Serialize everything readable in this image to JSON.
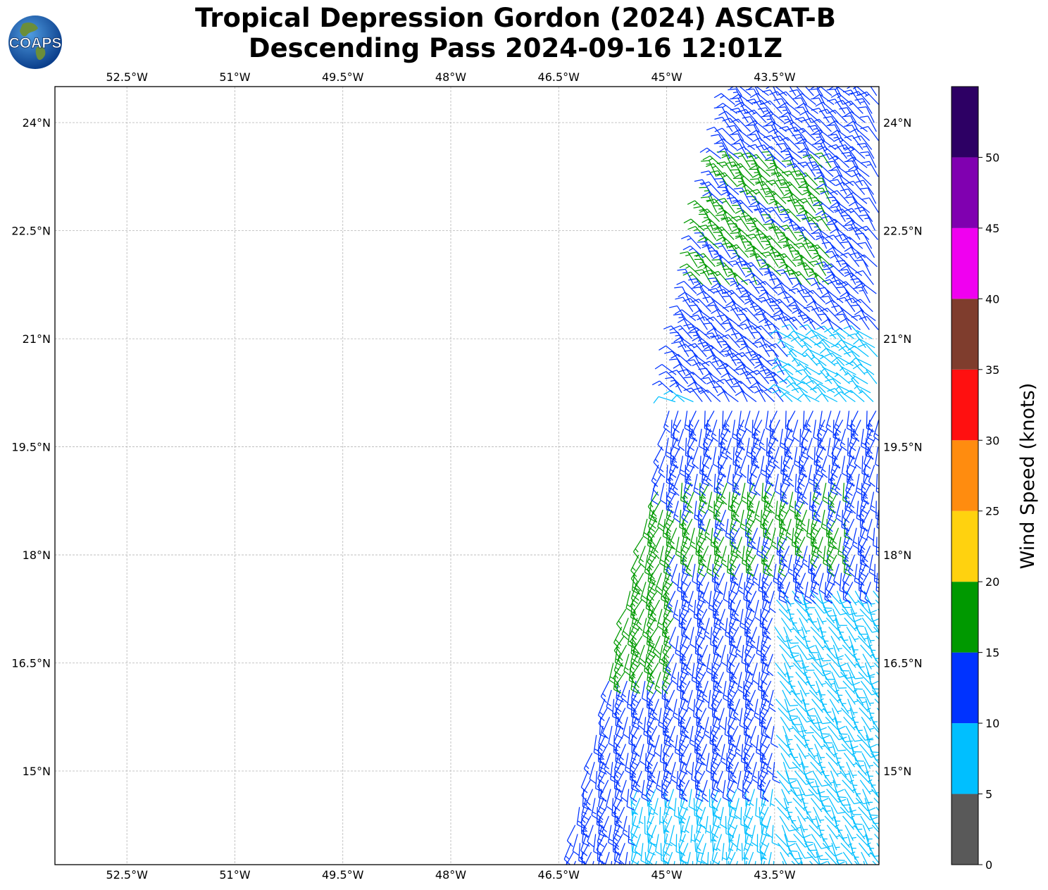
{
  "title": {
    "line1": "Tropical Depression Gordon (2024) ASCAT-B",
    "line2": "Descending Pass 2024-09-16 12:01Z"
  },
  "logo": {
    "text": "COAPS"
  },
  "colors": {
    "bin_0_5": "#595959",
    "bin_5_10": "#00bfff",
    "bin_10_15": "#0033ff",
    "bin_15_20": "#009900",
    "bin_20_25": "#ffd20f",
    "bin_25_30": "#ff8c0f",
    "bin_30_35": "#ff1010",
    "bin_35_40": "#7f3d2d",
    "bin_40_45": "#f000f0",
    "bin_45_50": "#8000b0",
    "bin_50_plus": "#2d0064"
  },
  "chart_data": {
    "type": "map",
    "extent": {
      "lon": [
        -53.5,
        -42.05
      ],
      "lat": [
        13.7,
        24.5
      ]
    },
    "lon_ticks": [
      "52.5°W",
      "51°W",
      "49.5°W",
      "48°W",
      "46.5°W",
      "45°W",
      "43.5°W"
    ],
    "lat_ticks": [
      "24°N",
      "22.5°N",
      "21°N",
      "19.5°N",
      "18°N",
      "16.5°N",
      "15°N"
    ],
    "grid": true,
    "colorbar": {
      "label": "Wind Speed (knots)",
      "ticks": [
        "0",
        "5",
        "10",
        "15",
        "20",
        "25",
        "30",
        "35",
        "40",
        "45",
        "50"
      ],
      "bins": [
        0,
        5,
        10,
        15,
        20,
        25,
        30,
        35,
        40,
        45,
        50,
        55
      ]
    },
    "swath": {
      "west_edge": [
        [
          -46.4,
          13.7
        ],
        [
          -45.2,
          18.8
        ],
        [
          -44.4,
          22.9
        ],
        [
          -44.0,
          24.45
        ]
      ],
      "east_edge": [
        [
          -42.05,
          13.7
        ],
        [
          -42.05,
          24.5
        ]
      ]
    },
    "wind_regions": [
      {
        "name": "northern NW winds",
        "lat_range": [
          20.2,
          24.5
        ],
        "speed_kt": 12,
        "dir_deg": 320
      },
      {
        "name": "northern band",
        "lat_range": [
          21.7,
          23.4
        ],
        "lon_range": [
          -44.6,
          -42.7
        ],
        "speed_kt": 16,
        "dir_deg": 325
      },
      {
        "name": "NE cyan patch",
        "lat_range": [
          19.7,
          21.0
        ],
        "lon_range": [
          -43.3,
          -42.05
        ],
        "speed_kt": 8,
        "dir_deg": 310
      },
      {
        "name": "western cyan",
        "lat_range": [
          19.5,
          20.2
        ],
        "lon_range": [
          -45.4,
          -44.6
        ],
        "speed_kt": 8,
        "dir_deg": 300
      },
      {
        "name": "central south winds",
        "lat_range": [
          13.7,
          20.0
        ],
        "speed_kt": 13,
        "dir_deg": 195
      },
      {
        "name": "western green band",
        "lat_range": [
          16.3,
          18.9
        ],
        "lon_range": [
          -46.2,
          -44.9
        ],
        "speed_kt": 17,
        "dir_deg": 200
      },
      {
        "name": "middle green band",
        "lat_range": [
          17.9,
          19.0
        ],
        "lon_range": [
          -45.0,
          -42.5
        ],
        "speed_kt": 16,
        "dir_deg": 195
      },
      {
        "name": "southeast light winds",
        "lat_range": [
          13.7,
          17.6
        ],
        "lon_range": [
          -43.5,
          -42.05
        ],
        "speed_kt": 7,
        "dir_deg": 150
      },
      {
        "name": "south central light",
        "lat_range": [
          13.7,
          14.8
        ],
        "lon_range": [
          -45.5,
          -43.5
        ],
        "speed_kt": 8,
        "dir_deg": 190
      }
    ]
  }
}
